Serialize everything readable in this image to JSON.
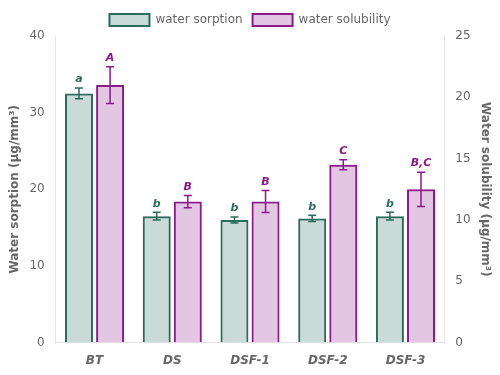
{
  "chart_data": {
    "type": "bar",
    "categories": [
      "BT",
      "DS",
      "DSF-1",
      "DSF-2",
      "DSF-3"
    ],
    "series": [
      {
        "name": "water sorption",
        "color": "#2a6b5e",
        "values": [
          32.5,
          16.5,
          16.0,
          16.2,
          16.5
        ],
        "errors": [
          0.7,
          0.5,
          0.4,
          0.4,
          0.5
        ],
        "labels": [
          "a",
          "b",
          "b",
          "b",
          "b"
        ]
      },
      {
        "name": "water solubility",
        "color": "#8b1a8b",
        "axis": "y2",
        "values": [
          21.0,
          11.5,
          11.5,
          14.5,
          12.5
        ],
        "errors": [
          1.5,
          0.5,
          0.9,
          0.4,
          1.4
        ],
        "labels": [
          "A",
          "B",
          "B",
          "C",
          "B,C"
        ]
      }
    ],
    "ylabel": "Water sorption (μg/mm³)",
    "y2label": "Water solubility (μg/mm³)",
    "ylim": [
      0,
      40
    ],
    "yticks": [
      0,
      10,
      20,
      30,
      40
    ],
    "y2lim": [
      0,
      25
    ],
    "y2ticks": [
      0,
      5,
      10,
      15,
      20,
      25
    ],
    "grid": false,
    "legend": "top"
  }
}
